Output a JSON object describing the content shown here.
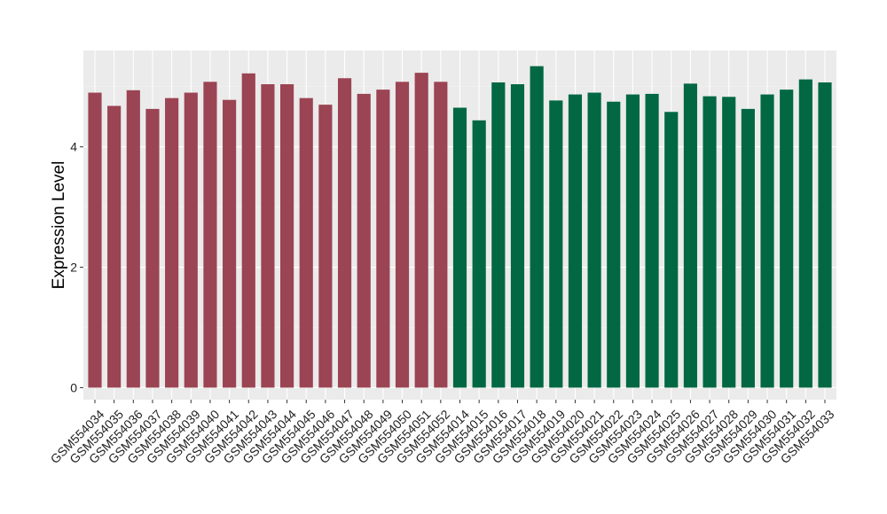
{
  "chart_data": {
    "type": "bar",
    "title": "",
    "xlabel": "",
    "ylabel": "Expression Level",
    "ylim": [
      -0.2,
      5.6
    ],
    "yticks": [
      0,
      2,
      4
    ],
    "grid": true,
    "legend": "none",
    "categories": [
      "GSM554034",
      "GSM554035",
      "GSM554036",
      "GSM554037",
      "GSM554038",
      "GSM554039",
      "GSM554040",
      "GSM554041",
      "GSM554042",
      "GSM554043",
      "GSM554044",
      "GSM554045",
      "GSM554046",
      "GSM554047",
      "GSM554048",
      "GSM554049",
      "GSM554050",
      "GSM554051",
      "GSM554052",
      "GSM554014",
      "GSM554015",
      "GSM554016",
      "GSM554017",
      "GSM554018",
      "GSM554019",
      "GSM554020",
      "GSM554021",
      "GSM554022",
      "GSM554023",
      "GSM554024",
      "GSM554025",
      "GSM554026",
      "GSM554027",
      "GSM554028",
      "GSM554029",
      "GSM554030",
      "GSM554031",
      "GSM554032",
      "GSM554033"
    ],
    "values": [
      4.9,
      4.68,
      4.94,
      4.63,
      4.81,
      4.9,
      5.08,
      4.78,
      5.22,
      5.04,
      5.04,
      4.81,
      4.7,
      5.14,
      4.88,
      4.95,
      5.08,
      5.23,
      5.08,
      4.65,
      4.44,
      5.07,
      5.04,
      5.34,
      4.77,
      4.87,
      4.9,
      4.75,
      4.87,
      4.88,
      4.58,
      5.05,
      4.84,
      4.83,
      4.63,
      4.87,
      4.95,
      5.12,
      5.07
    ],
    "group_colors": [
      "#9b4453",
      "#016843"
    ],
    "group_sizes": [
      19,
      20
    ]
  },
  "colors": {
    "panel_background": "#ebebeb",
    "grid_major": "#ffffff",
    "grid_minor": "#f4f4f4"
  }
}
